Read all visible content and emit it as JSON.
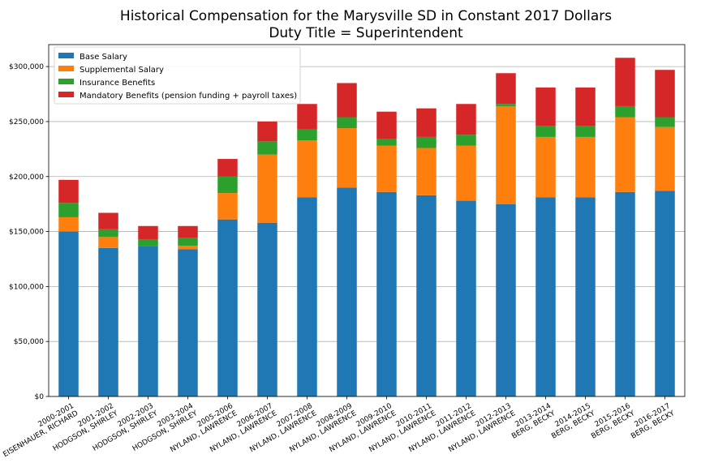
{
  "chart_data": {
    "type": "bar",
    "stacked": true,
    "title": "Historical Compensation for the Marysville SD in Constant 2017 Dollars",
    "subtitle": "Duty Title = Superintendent",
    "xlabel": "",
    "ylabel": "",
    "ylim": [
      0,
      320000
    ],
    "yticks": [
      {
        "value": 0,
        "label": "$0"
      },
      {
        "value": 50000,
        "label": "$50,000"
      },
      {
        "value": 100000,
        "label": "$100,000"
      },
      {
        "value": 150000,
        "label": "$150,000"
      },
      {
        "value": 200000,
        "label": "$200,000"
      },
      {
        "value": 250000,
        "label": "$250,000"
      },
      {
        "value": 300000,
        "label": "$300,000"
      }
    ],
    "grid": "horizontal",
    "legend_position": "top-left",
    "categories": [
      [
        "2000-2001",
        "EISENHAUER, RICHARD"
      ],
      [
        "2001-2002",
        "HODGSON, SHIRLEY"
      ],
      [
        "2002-2003",
        "HODGSON, SHIRLEY"
      ],
      [
        "2003-2004",
        "HODGSON, SHIRLEY"
      ],
      [
        "2005-2006",
        "NYLAND, LAWRENCE"
      ],
      [
        "2006-2007",
        "NYLAND, LAWRENCE"
      ],
      [
        "2007-2008",
        "NYLAND, LAWRENCE"
      ],
      [
        "2008-2009",
        "NYLAND, LAWRENCE"
      ],
      [
        "2009-2010",
        "NYLAND, LAWRENCE"
      ],
      [
        "2010-2011",
        "NYLAND, LAWRENCE"
      ],
      [
        "2011-2012",
        "NYLAND, LAWRENCE"
      ],
      [
        "2012-2013",
        "NYLAND, LAWRENCE"
      ],
      [
        "2013-2014",
        "BERG, BECKY"
      ],
      [
        "2014-2015",
        "BERG, BECKY"
      ],
      [
        "2015-2016",
        "BERG, BECKY"
      ],
      [
        "2016-2017",
        "BERG, BECKY"
      ]
    ],
    "series": [
      {
        "name": "Base Salary",
        "color": "#1f77b4",
        "values": [
          150000,
          135000,
          137000,
          134000,
          161000,
          158000,
          181000,
          190000,
          186000,
          183000,
          178000,
          175000,
          181000,
          181000,
          186000,
          187000
        ]
      },
      {
        "name": "Supplemental Salary",
        "color": "#ff7f0e",
        "values": [
          13000,
          10000,
          0,
          3000,
          24000,
          62000,
          52000,
          54000,
          42000,
          43000,
          50000,
          89000,
          55000,
          55000,
          68000,
          58000
        ]
      },
      {
        "name": "Insurance Benefits",
        "color": "#2ca02c",
        "values": [
          13000,
          7000,
          6000,
          7000,
          15000,
          12000,
          10000,
          10000,
          6000,
          10000,
          10000,
          2000,
          10000,
          10000,
          10000,
          9000
        ]
      },
      {
        "name": "Mandatory Benefits (pension funding + payroll taxes)",
        "color": "#d62728",
        "values": [
          21000,
          15000,
          12000,
          11000,
          16000,
          18000,
          23000,
          31000,
          25000,
          26000,
          28000,
          28000,
          35000,
          35000,
          44000,
          43000
        ]
      }
    ]
  }
}
